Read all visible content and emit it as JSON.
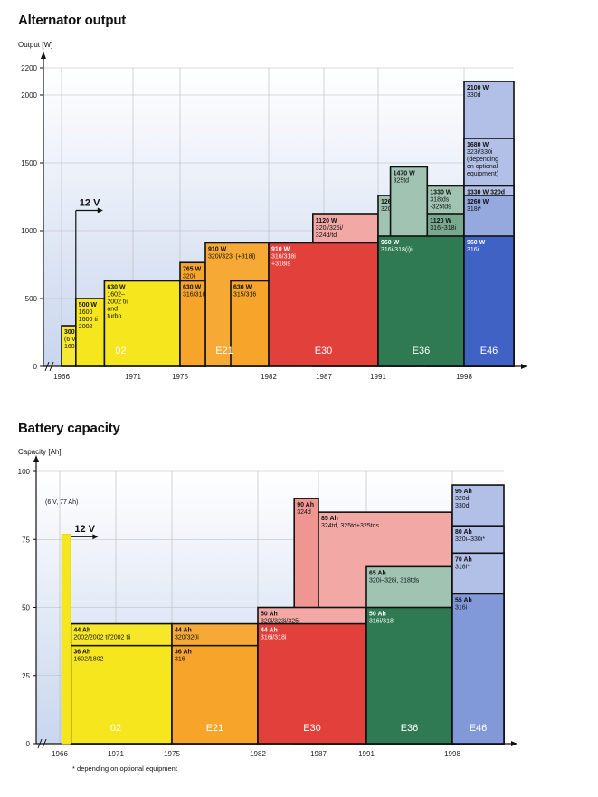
{
  "chart_data": [
    {
      "type": "bar",
      "title": "Alternator output",
      "ylabel": "Output [W]",
      "ylim": [
        0,
        2200
      ],
      "yticks": [
        0,
        500,
        1000,
        1500,
        2000,
        2200
      ],
      "xticks": [
        "1966",
        "1971",
        "1975",
        "1982",
        "1987",
        "1991",
        "1998"
      ],
      "grid": true,
      "voltage_marker": "12 V",
      "generations": [
        {
          "name": "02",
          "from": 1966,
          "to": 1975,
          "color": "#f5e61e"
        },
        {
          "name": "E21",
          "from": 1975,
          "to": 1982,
          "color": "#f6a52a"
        },
        {
          "name": "E30",
          "from": 1982,
          "to": 1991,
          "color": "#e2403a"
        },
        {
          "name": "E36",
          "from": 1991,
          "to": 1998,
          "color": "#2f7a52"
        },
        {
          "name": "E46",
          "from": 1998,
          "to": 2002,
          "color": "#3f62c4"
        }
      ],
      "steps": [
        {
          "value": 300,
          "from": 1966,
          "to": 1967,
          "lines": [
            "300 W",
            "(6 V)",
            "1600-2"
          ]
        },
        {
          "value": 500,
          "from": 1967,
          "to": 1969,
          "lines": [
            "500 W",
            "1600",
            "1600 ti",
            "2002"
          ]
        },
        {
          "value": 630,
          "from": 1969,
          "to": 1975,
          "lines": [
            "630 W",
            "1602–",
            "2002 tii",
            "and",
            "turbo"
          ]
        },
        {
          "value": 765,
          "from": 1975,
          "to": 1977,
          "lines": [
            "765 W",
            "320i"
          ]
        },
        {
          "value": 910,
          "from": 1977,
          "to": 1982,
          "lines": [
            "910 W",
            "320i/323i (+318i)"
          ]
        },
        {
          "value": 630,
          "from": 1975,
          "to": 1977,
          "lines": [
            "630 W",
            "316/318"
          ]
        },
        {
          "value": 630,
          "from": 1979,
          "to": 1982,
          "lines": [
            "630 W",
            "315/316"
          ]
        },
        {
          "value": 1120,
          "from": 1986,
          "to": 1991,
          "lines": [
            "1120 W",
            "320i/325i/",
            "324d/td"
          ]
        },
        {
          "value": 910,
          "from": 1982,
          "to": 1991,
          "lines": [
            "910 W",
            "316/318i",
            "+318is"
          ]
        },
        {
          "value": 1260,
          "from": 1991,
          "to": 1994,
          "lines": [
            "1260 W",
            "320i/325i"
          ]
        },
        {
          "value": 1470,
          "from": 1992,
          "to": 1995,
          "lines": [
            "1470 W",
            "325td"
          ]
        },
        {
          "value": 1330,
          "from": 1995,
          "to": 1998,
          "lines": [
            "1330 W",
            "318tds",
            "-325tds"
          ]
        },
        {
          "value": 1120,
          "from": 1995,
          "to": 1998,
          "lines": [
            "1120 W",
            "316i-318i"
          ]
        },
        {
          "value": 960,
          "from": 1991,
          "to": 1998,
          "lines": [
            "960 W",
            "316i/318(i)i"
          ]
        },
        {
          "value": 2100,
          "from": 1998,
          "to": 2002,
          "lines": [
            "2100 W",
            "330d"
          ]
        },
        {
          "value": 1680,
          "from": 1998,
          "to": 2002,
          "lines": [
            "1680 W",
            "323i/330i",
            "(depending",
            "on optional",
            "equipment)"
          ]
        },
        {
          "value": 1330,
          "from": 1998,
          "to": 2002,
          "lines": [
            "1330 W 320d"
          ]
        },
        {
          "value": 1260,
          "from": 1998,
          "to": 2002,
          "lines": [
            "1260 W",
            "318i*"
          ]
        },
        {
          "value": 960,
          "from": 1998,
          "to": 2002,
          "lines": [
            "960 W",
            "316i"
          ]
        }
      ]
    },
    {
      "type": "bar",
      "title": "Battery capacity",
      "ylabel": "Capacity [Ah]",
      "ylim": [
        0,
        100
      ],
      "yticks": [
        0,
        25,
        50,
        75,
        100
      ],
      "xticks": [
        "1966",
        "1971",
        "1975",
        "1982",
        "1987",
        "1991",
        "1998"
      ],
      "grid": true,
      "voltage_marker": "12 V",
      "annotation": "(6 V, 77 Ah)",
      "footnote": "* depending on optional equipment",
      "generations": [
        {
          "name": "02",
          "from": 1966,
          "to": 1975,
          "color": "#f5e61e"
        },
        {
          "name": "E21",
          "from": 1975,
          "to": 1982,
          "color": "#f6a52a"
        },
        {
          "name": "E30",
          "from": 1982,
          "to": 1991,
          "color": "#e2403a"
        },
        {
          "name": "E36",
          "from": 1991,
          "to": 1998,
          "color": "#2f7a52"
        },
        {
          "name": "E46",
          "from": 1998,
          "to": 2002,
          "color": "#3f62c4"
        }
      ],
      "steps": [
        {
          "value": 44,
          "from": 1967,
          "to": 1975,
          "lines": [
            "44 Ah",
            "2002/2002 ti/2002 tii"
          ]
        },
        {
          "value": 36,
          "from": 1967,
          "to": 1975,
          "lines": [
            "36 Ah",
            "1602/1802"
          ]
        },
        {
          "value": 44,
          "from": 1975,
          "to": 1982,
          "lines": [
            "44 Ah",
            "320/320i"
          ]
        },
        {
          "value": 36,
          "from": 1975,
          "to": 1982,
          "lines": [
            "36 Ah",
            "316"
          ]
        },
        {
          "value": 90,
          "from": 1985,
          "to": 1987,
          "lines": [
            "90 Ah",
            "324d"
          ]
        },
        {
          "value": 85,
          "from": 1987,
          "to": 1998,
          "lines": [
            "85 Ah",
            "324td, 325td+325tds"
          ]
        },
        {
          "value": 50,
          "from": 1982,
          "to": 1991,
          "lines": [
            "50 Ah",
            "320i/323i/325i"
          ]
        },
        {
          "value": 44,
          "from": 1982,
          "to": 1991,
          "lines": [
            "44 Ah",
            "316i/318i"
          ]
        },
        {
          "value": 65,
          "from": 1991,
          "to": 1998,
          "lines": [
            "65 Ah",
            "320i–328i, 318tds"
          ]
        },
        {
          "value": 50,
          "from": 1991,
          "to": 1998,
          "lines": [
            "50 Ah",
            "316i/318i"
          ]
        },
        {
          "value": 95,
          "from": 1998,
          "to": 2002,
          "lines": [
            "95 Ah",
            "320d",
            "330d"
          ]
        },
        {
          "value": 80,
          "from": 1998,
          "to": 2002,
          "lines": [
            "80 Ah",
            "320i–330i*"
          ]
        },
        {
          "value": 70,
          "from": 1998,
          "to": 2002,
          "lines": [
            "70 Ah",
            "318i*"
          ]
        },
        {
          "value": 55,
          "from": 1998,
          "to": 2002,
          "lines": [
            "55 Ah",
            "316i"
          ]
        }
      ]
    }
  ]
}
